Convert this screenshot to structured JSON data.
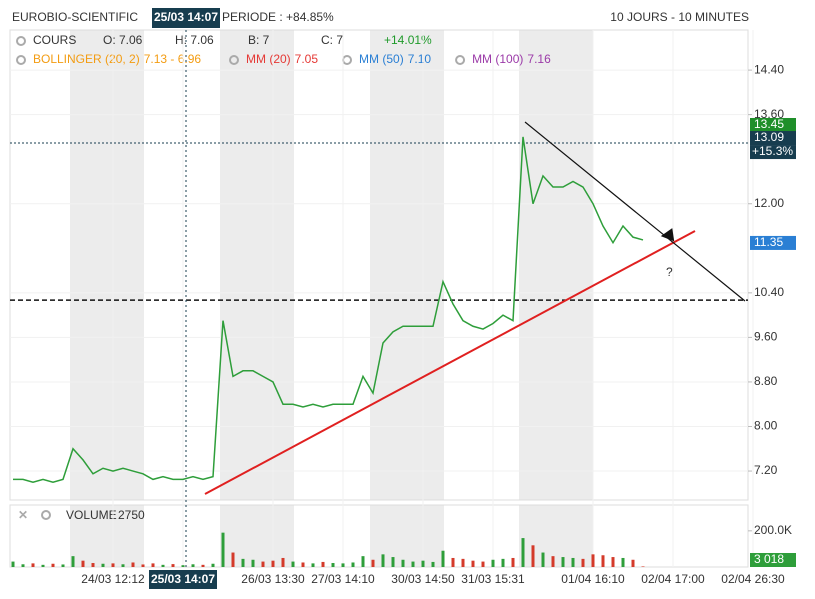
{
  "chart_data": {
    "type": "line",
    "title": "EUROBIO-SCIENTIFIC",
    "subtitle": "PERIODE : +84.85%",
    "period": "10 JOURS - 10 MINUTES",
    "legend": {
      "main": {
        "name": "COURS",
        "open": "O: 7.06",
        "high": "H: 7.06",
        "low": "B: 7",
        "close": "C: 7",
        "change": "+14.01%"
      },
      "indicators": [
        {
          "name": "BOLLINGER (20, 2)",
          "value": "7.13 - 6.96",
          "color": "#f39c12"
        },
        {
          "name": "MM (20)",
          "value": "7.05",
          "color": "#e53935"
        },
        {
          "name": "MM (50)",
          "value": "7.10",
          "color": "#2a7fd4"
        },
        {
          "name": "MM (100)",
          "value": "7.16",
          "color": "#9b3aa8"
        }
      ]
    },
    "categories": [
      null,
      null,
      null,
      null,
      null,
      null,
      null,
      null,
      null,
      null,
      "24/03 12:12",
      null,
      null,
      null,
      null,
      null,
      null,
      "25/03 14:07",
      null,
      null,
      null,
      null,
      null,
      null,
      null,
      null,
      "26/03 13:30",
      null,
      null,
      null,
      null,
      null,
      null,
      "27/03 14:10",
      null,
      null,
      null,
      null,
      null,
      null,
      null,
      "30/03 14:50",
      null,
      null,
      null,
      null,
      null,
      null,
      "31/03 15:31",
      null,
      null,
      null,
      null,
      null,
      null,
      null,
      null,
      null,
      "01/04 16:10",
      null,
      null,
      null,
      null,
      null,
      null,
      null,
      "02/04 17:00",
      null,
      null,
      null,
      null,
      null,
      null,
      null,
      "02/04 26:30"
    ],
    "series": [
      {
        "name": "COURS",
        "color": "#2e9e3a",
        "values": [
          7.05,
          7.05,
          7.0,
          7.05,
          7.0,
          7.05,
          7.6,
          7.4,
          7.15,
          7.25,
          7.2,
          7.25,
          7.2,
          7.15,
          7.05,
          7.1,
          7.05,
          7.05,
          7.1,
          7.05,
          7.1,
          9.9,
          8.9,
          9.0,
          9.0,
          8.9,
          8.8,
          8.4,
          8.4,
          8.35,
          8.4,
          8.35,
          8.4,
          8.4,
          8.4,
          8.9,
          8.6,
          9.5,
          9.7,
          9.8,
          9.8,
          9.8,
          9.8,
          10.6,
          10.2,
          9.9,
          9.8,
          9.75,
          9.85,
          10.0,
          9.9,
          13.2,
          12.0,
          12.5,
          12.3,
          12.3,
          12.4,
          12.3,
          12.0,
          11.6,
          11.3,
          11.6,
          11.4,
          11.35,
          null,
          null,
          null,
          null,
          null,
          null,
          null,
          null,
          null,
          null,
          null
        ]
      }
    ],
    "ylim": [
      6.68,
      15.12
    ],
    "yticks": [
      {
        "value": 14.4,
        "label": "14.40"
      },
      {
        "value": 13.6,
        "label": "13.60"
      },
      {
        "value": 12.0,
        "label": "12.00"
      },
      {
        "value": 10.4,
        "label": "10.40"
      },
      {
        "value": 9.6,
        "label": "9.60"
      },
      {
        "value": 8.8,
        "label": "8.80"
      },
      {
        "value": 8.0,
        "label": "8.00"
      },
      {
        "value": 7.2,
        "label": "7.20"
      }
    ],
    "grid": true,
    "price_labels": [
      {
        "value": 13.45,
        "label": "13.45",
        "color": "#1f8f2a"
      },
      {
        "value": 13.09,
        "label": "13.09",
        "change": "+15.3%",
        "color": "#173d4f"
      },
      {
        "value": 11.35,
        "label": "11.35",
        "color": "#2a7fd4"
      }
    ],
    "level": 10.27,
    "annotation": "?",
    "volume": {
      "name": "VOLUME",
      "current": "2750",
      "up_color": "#2e9e3a",
      "down_color": "#d43a2a",
      "values": [
        30000,
        15000,
        20000,
        12000,
        18000,
        14000,
        60000,
        35000,
        22000,
        18000,
        20000,
        15000,
        25000,
        14000,
        20000,
        12000,
        16000,
        10000,
        15000,
        12000,
        18000,
        190000,
        80000,
        45000,
        40000,
        30000,
        35000,
        50000,
        30000,
        25000,
        20000,
        28000,
        22000,
        20000,
        25000,
        60000,
        40000,
        70000,
        55000,
        40000,
        30000,
        35000,
        28000,
        90000,
        50000,
        45000,
        35000,
        30000,
        40000,
        45000,
        50000,
        160000,
        120000,
        80000,
        60000,
        55000,
        50000,
        45000,
        70000,
        65000,
        55000,
        50000,
        40000,
        3018,
        null,
        null,
        null,
        null,
        null,
        null,
        null,
        null,
        null,
        null,
        null
      ],
      "ylim": [
        0,
        343000
      ],
      "yticks": [
        {
          "value": 200000,
          "label": "200.0K"
        }
      ],
      "last": {
        "value": 3018,
        "label": "3 018"
      }
    }
  }
}
